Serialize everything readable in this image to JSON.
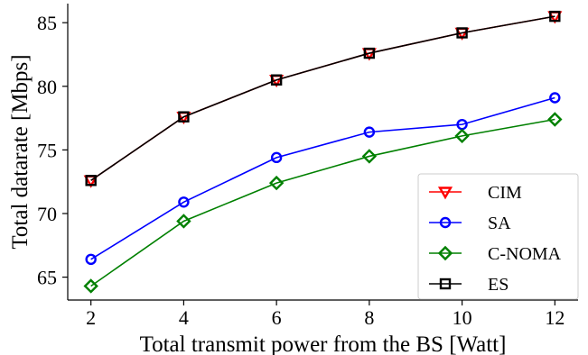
{
  "chart_data": {
    "type": "line",
    "title": "",
    "xlabel": "Total transmit power from the BS [Watt]",
    "ylabel": "Total datarate [Mbps]",
    "x": [
      2,
      4,
      6,
      8,
      10,
      12
    ],
    "xlim": [
      1.5,
      12.5
    ],
    "ylim": [
      63.2,
      86.5
    ],
    "xticks": [
      2,
      4,
      6,
      8,
      10,
      12
    ],
    "yticks": [
      65,
      70,
      75,
      80,
      85
    ],
    "grid": false,
    "legend_position": "bottom-right",
    "series": [
      {
        "name": "CIM",
        "color": "#ff0000",
        "marker": "triangle-down",
        "values": [
          72.6,
          77.6,
          80.5,
          82.6,
          84.2,
          85.5
        ]
      },
      {
        "name": "SA",
        "color": "#0000ff",
        "marker": "circle",
        "values": [
          66.4,
          70.9,
          74.4,
          76.4,
          77.0,
          79.1
        ]
      },
      {
        "name": "C-NOMA",
        "color": "#008000",
        "marker": "diamond",
        "values": [
          64.3,
          69.4,
          72.4,
          74.5,
          76.1,
          77.4
        ]
      },
      {
        "name": "ES",
        "color": "#000000",
        "marker": "square",
        "values": [
          72.6,
          77.6,
          80.5,
          82.6,
          84.2,
          85.5
        ]
      }
    ]
  }
}
